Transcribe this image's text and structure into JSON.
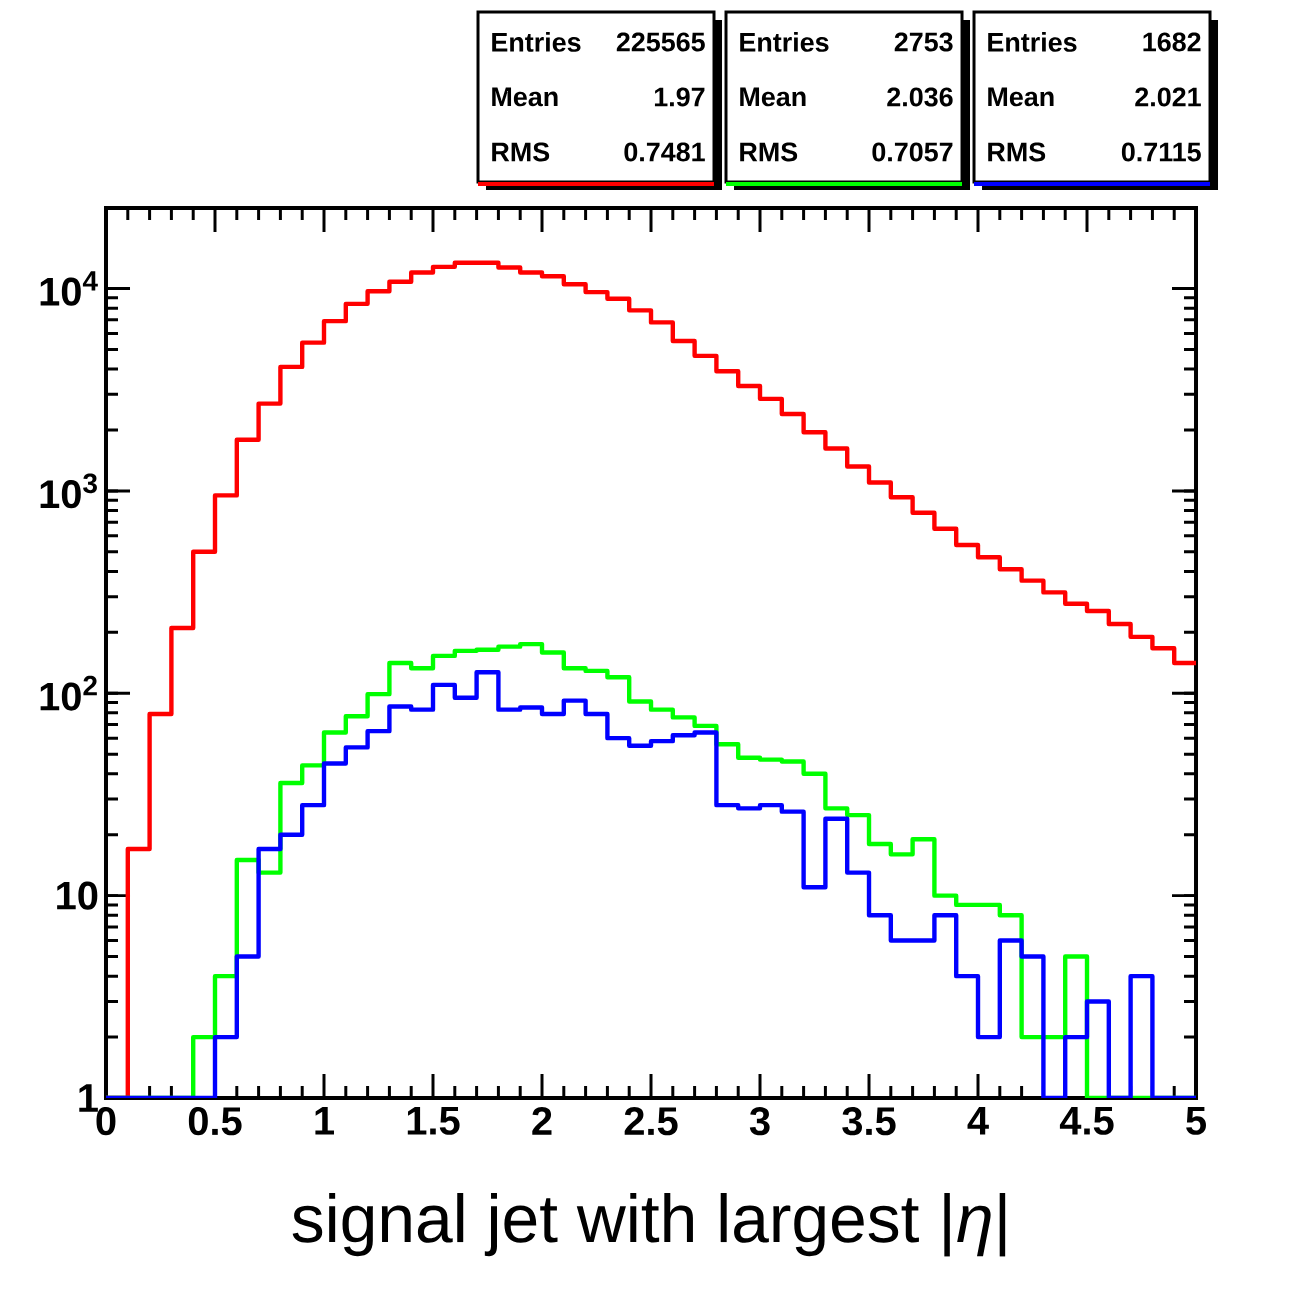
{
  "chart_data": {
    "type": "histogram",
    "xlabel": "signal jet with largest |*η*|",
    "bins": [
      0,
      0.1,
      0.2,
      0.3,
      0.4,
      0.5,
      0.6,
      0.7,
      0.8,
      0.9,
      1,
      1.1,
      1.2,
      1.3,
      1.4,
      1.5,
      1.6,
      1.7,
      1.8,
      1.9,
      2,
      2.1,
      2.2,
      2.3,
      2.4,
      2.5,
      2.6,
      2.7,
      2.8,
      2.9,
      3,
      3.1,
      3.2,
      3.3,
      3.4,
      3.5,
      3.6,
      3.7,
      3.8,
      3.9,
      4,
      4.1,
      4.2,
      4.3,
      4.4,
      4.5,
      4.6,
      4.7,
      4.8,
      4.9,
      5
    ],
    "series": [
      {
        "color": "#ff0000",
        "values": [
          null,
          17,
          79,
          210,
          500,
          950,
          1790,
          2700,
          4100,
          5400,
          6900,
          8400,
          9700,
          10800,
          12000,
          12800,
          13400,
          13400,
          12700,
          12000,
          11500,
          10500,
          9600,
          8900,
          7800,
          6800,
          5500,
          4650,
          3900,
          3300,
          2850,
          2400,
          1950,
          1620,
          1320,
          1100,
          930,
          780,
          650,
          540,
          470,
          410,
          360,
          315,
          277,
          255,
          220,
          190,
          167,
          141
        ]
      },
      {
        "color": "#00ff00",
        "values": [
          null,
          null,
          null,
          null,
          2,
          4,
          15,
          13,
          36,
          44,
          64,
          77,
          99,
          141,
          133,
          153,
          162,
          164,
          170,
          175,
          159,
          133,
          129,
          120,
          91,
          83,
          76,
          69,
          56,
          48,
          47,
          46,
          40,
          27,
          25,
          18,
          16,
          19,
          10,
          9,
          9,
          8,
          2,
          2,
          5,
          null,
          null,
          null,
          null,
          null
        ]
      },
      {
        "color": "#0000ff",
        "values": [
          null,
          null,
          null,
          null,
          null,
          2,
          5,
          17,
          20,
          28,
          45,
          54,
          65,
          86,
          83,
          110,
          95,
          127,
          83,
          85,
          79,
          92,
          79,
          60,
          55,
          58,
          62,
          64,
          28,
          27,
          28,
          26,
          11,
          24,
          13,
          8,
          6,
          6,
          8,
          4,
          2,
          6,
          5,
          null,
          2,
          3,
          null,
          4,
          null,
          null
        ]
      }
    ],
    "xlim": [
      0,
      5
    ],
    "ylim": [
      1,
      25000
    ],
    "log": "y",
    "xticks": [
      0,
      0.5,
      1,
      1.5,
      2,
      2.5,
      3,
      3.5,
      4,
      4.5,
      5
    ],
    "yticks": [
      1,
      10,
      {
        "value": 100,
        "label": "10$^{2}$"
      },
      {
        "value": 1000,
        "label": "10$^{3}$"
      },
      {
        "value": 10000,
        "label": "10$^{4}$"
      }
    ],
    "annotations": [
      "Entries",
      "225565",
      "Mean",
      "1.97",
      "RMS",
      "0.7481",
      "Entries",
      "2753",
      "Mean",
      "2.036",
      "RMS",
      "0.7057",
      "Entries",
      "1682",
      "Mean",
      "2.021",
      "RMS",
      "0.7115"
    ]
  }
}
